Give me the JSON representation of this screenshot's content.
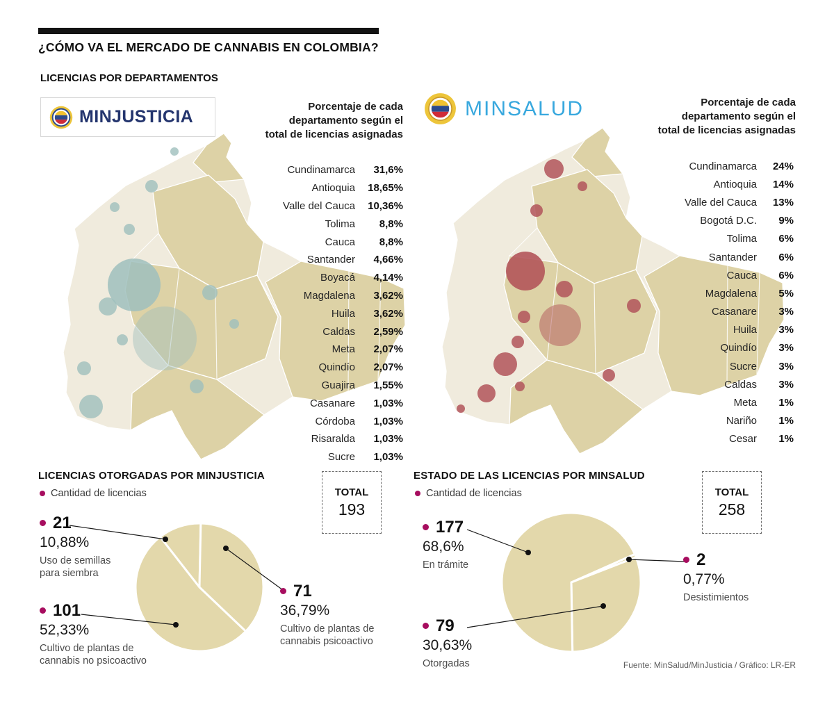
{
  "page": {
    "title": "¿CÓMO VA EL MERCADO DE CANNABIS EN COLOMBIA?",
    "section1_title": "LICENCIAS POR DEPARTAMENTOS",
    "source": "Fuente: MinSalud/MinJusticia / Gráfico: LR-ER"
  },
  "minjusticia": {
    "logo": "MINJUSTICIA",
    "note": "Porcentaje de cada\ndepartamento según el\ntotal de licencias asignadas",
    "departments": [
      {
        "name": "Cundinamarca",
        "value": "31,6%"
      },
      {
        "name": "Antioquia",
        "value": "18,65%"
      },
      {
        "name": "Valle del Cauca",
        "value": "10,36%"
      },
      {
        "name": "Tolima",
        "value": "8,8%"
      },
      {
        "name": "Cauca",
        "value": "8,8%"
      },
      {
        "name": "Santander",
        "value": "4,66%"
      },
      {
        "name": "Boyacá",
        "value": "4,14%"
      },
      {
        "name": "Magdalena",
        "value": "3,62%"
      },
      {
        "name": "Huila",
        "value": "3,62%"
      },
      {
        "name": "Caldas",
        "value": "2,59%"
      },
      {
        "name": "Meta",
        "value": "2,07%"
      },
      {
        "name": "Quindío",
        "value": "2,07%"
      },
      {
        "name": "Guajira",
        "value": "1,55%"
      },
      {
        "name": "Casanare",
        "value": "1,03%"
      },
      {
        "name": "Córdoba",
        "value": "1,03%"
      },
      {
        "name": "Risaralda",
        "value": "1,03%"
      },
      {
        "name": "Sucre",
        "value": "1,03%"
      }
    ]
  },
  "minsalud": {
    "logo": "MINSALUD",
    "note": "Porcentaje de cada\ndepartamento según el\ntotal de licencias asignadas",
    "departments": [
      {
        "name": "Cundinamarca",
        "value": "24%"
      },
      {
        "name": "Antioquia",
        "value": "14%"
      },
      {
        "name": "Valle del Cauca",
        "value": "13%"
      },
      {
        "name": "Bogotá D.C.",
        "value": "9%"
      },
      {
        "name": "Tolima",
        "value": "6%"
      },
      {
        "name": "Santander",
        "value": "6%"
      },
      {
        "name": "Cauca",
        "value": "6%"
      },
      {
        "name": "Magdalena",
        "value": "5%"
      },
      {
        "name": "Casanare",
        "value": "3%"
      },
      {
        "name": "Huila",
        "value": "3%"
      },
      {
        "name": "Quindío",
        "value": "3%"
      },
      {
        "name": "Sucre",
        "value": "3%"
      },
      {
        "name": "Caldas",
        "value": "3%"
      },
      {
        "name": "Meta",
        "value": "1%"
      },
      {
        "name": "Nariño",
        "value": "1%"
      },
      {
        "name": "Cesar",
        "value": "1%"
      }
    ]
  },
  "licenses_minjusticia": {
    "title": "LICENCIAS OTORGADAS POR MINJUSTICIA",
    "legend": "Cantidad de licencias",
    "total_label": "TOTAL",
    "total_value": "193",
    "callouts": [
      {
        "count": "21",
        "pct": "10,88%",
        "desc": "Uso de semillas\npara siembra"
      },
      {
        "count": "101",
        "pct": "52,33%",
        "desc": "Cultivo de plantas de\ncannabis no psicoactivo"
      },
      {
        "count": "71",
        "pct": "36,79%",
        "desc": "Cultivo de plantas de\ncannabis psicoactivo"
      }
    ]
  },
  "licenses_minsalud": {
    "title": "ESTADO DE LAS LICENCIAS POR MINSALUD",
    "legend": "Cantidad de licencias",
    "total_label": "TOTAL",
    "total_value": "258",
    "callouts": [
      {
        "count": "177",
        "pct": "68,6%",
        "desc": "En trámite"
      },
      {
        "count": "2",
        "pct": "0,77%",
        "desc": "Desistimientos"
      },
      {
        "count": "79",
        "pct": "30,63%",
        "desc": "Otorgadas"
      }
    ]
  },
  "icons": {
    "legend_bullet": "filled-circle",
    "emblem": "colombia-coat-of-arms"
  },
  "colors": {
    "accent_dot": "#a70d5f",
    "pie_fill": "#e3d8ab",
    "map_base": "#f0ebdd",
    "map_dept": "#ddd2a6",
    "bubble_minjusticia": "#9fbfbd",
    "bubble_minsalud": "#b2555a",
    "minjusticia_text": "#24356e",
    "minsalud_text": "#38a8de",
    "title_bar": "#131313"
  },
  "chart_data": [
    {
      "type": "table",
      "title": "MINJUSTICIA — Porcentaje de cada departamento según el total de licencias asignadas",
      "columns": [
        "Departamento",
        "Porcentaje"
      ],
      "categories": [
        "Cundinamarca",
        "Antioquia",
        "Valle del Cauca",
        "Tolima",
        "Cauca",
        "Santander",
        "Boyacá",
        "Magdalena",
        "Huila",
        "Caldas",
        "Meta",
        "Quindío",
        "Guajira",
        "Casanare",
        "Córdoba",
        "Risaralda",
        "Sucre"
      ],
      "values": [
        31.6,
        18.65,
        10.36,
        8.8,
        8.8,
        4.66,
        4.14,
        3.62,
        3.62,
        2.59,
        2.07,
        2.07,
        1.55,
        1.03,
        1.03,
        1.03,
        1.03
      ],
      "unit": "%"
    },
    {
      "type": "table",
      "title": "MINSALUD — Porcentaje de cada departamento según el total de licencias asignadas",
      "columns": [
        "Departamento",
        "Porcentaje"
      ],
      "categories": [
        "Cundinamarca",
        "Antioquia",
        "Valle del Cauca",
        "Bogotá D.C.",
        "Tolima",
        "Santander",
        "Cauca",
        "Magdalena",
        "Casanare",
        "Huila",
        "Quindío",
        "Sucre",
        "Caldas",
        "Meta",
        "Nariño",
        "Cesar"
      ],
      "values": [
        24,
        14,
        13,
        9,
        6,
        6,
        6,
        5,
        3,
        3,
        3,
        3,
        3,
        1,
        1,
        1
      ],
      "unit": "%"
    },
    {
      "type": "pie",
      "title": "LICENCIAS OTORGADAS POR MINJUSTICIA",
      "total": 193,
      "categories": [
        "Uso de semillas para siembra",
        "Cultivo de plantas de cannabis psicoactivo",
        "Cultivo de plantas de cannabis no psicoactivo"
      ],
      "values": [
        21,
        71,
        101
      ],
      "percents": [
        10.88,
        36.79,
        52.33
      ]
    },
    {
      "type": "pie",
      "title": "ESTADO DE LAS LICENCIAS POR MINSALUD",
      "total": 258,
      "categories": [
        "Desistimientos",
        "Otorgadas",
        "En trámite"
      ],
      "values": [
        2,
        79,
        177
      ],
      "percents": [
        0.77,
        30.63,
        68.6
      ]
    }
  ]
}
